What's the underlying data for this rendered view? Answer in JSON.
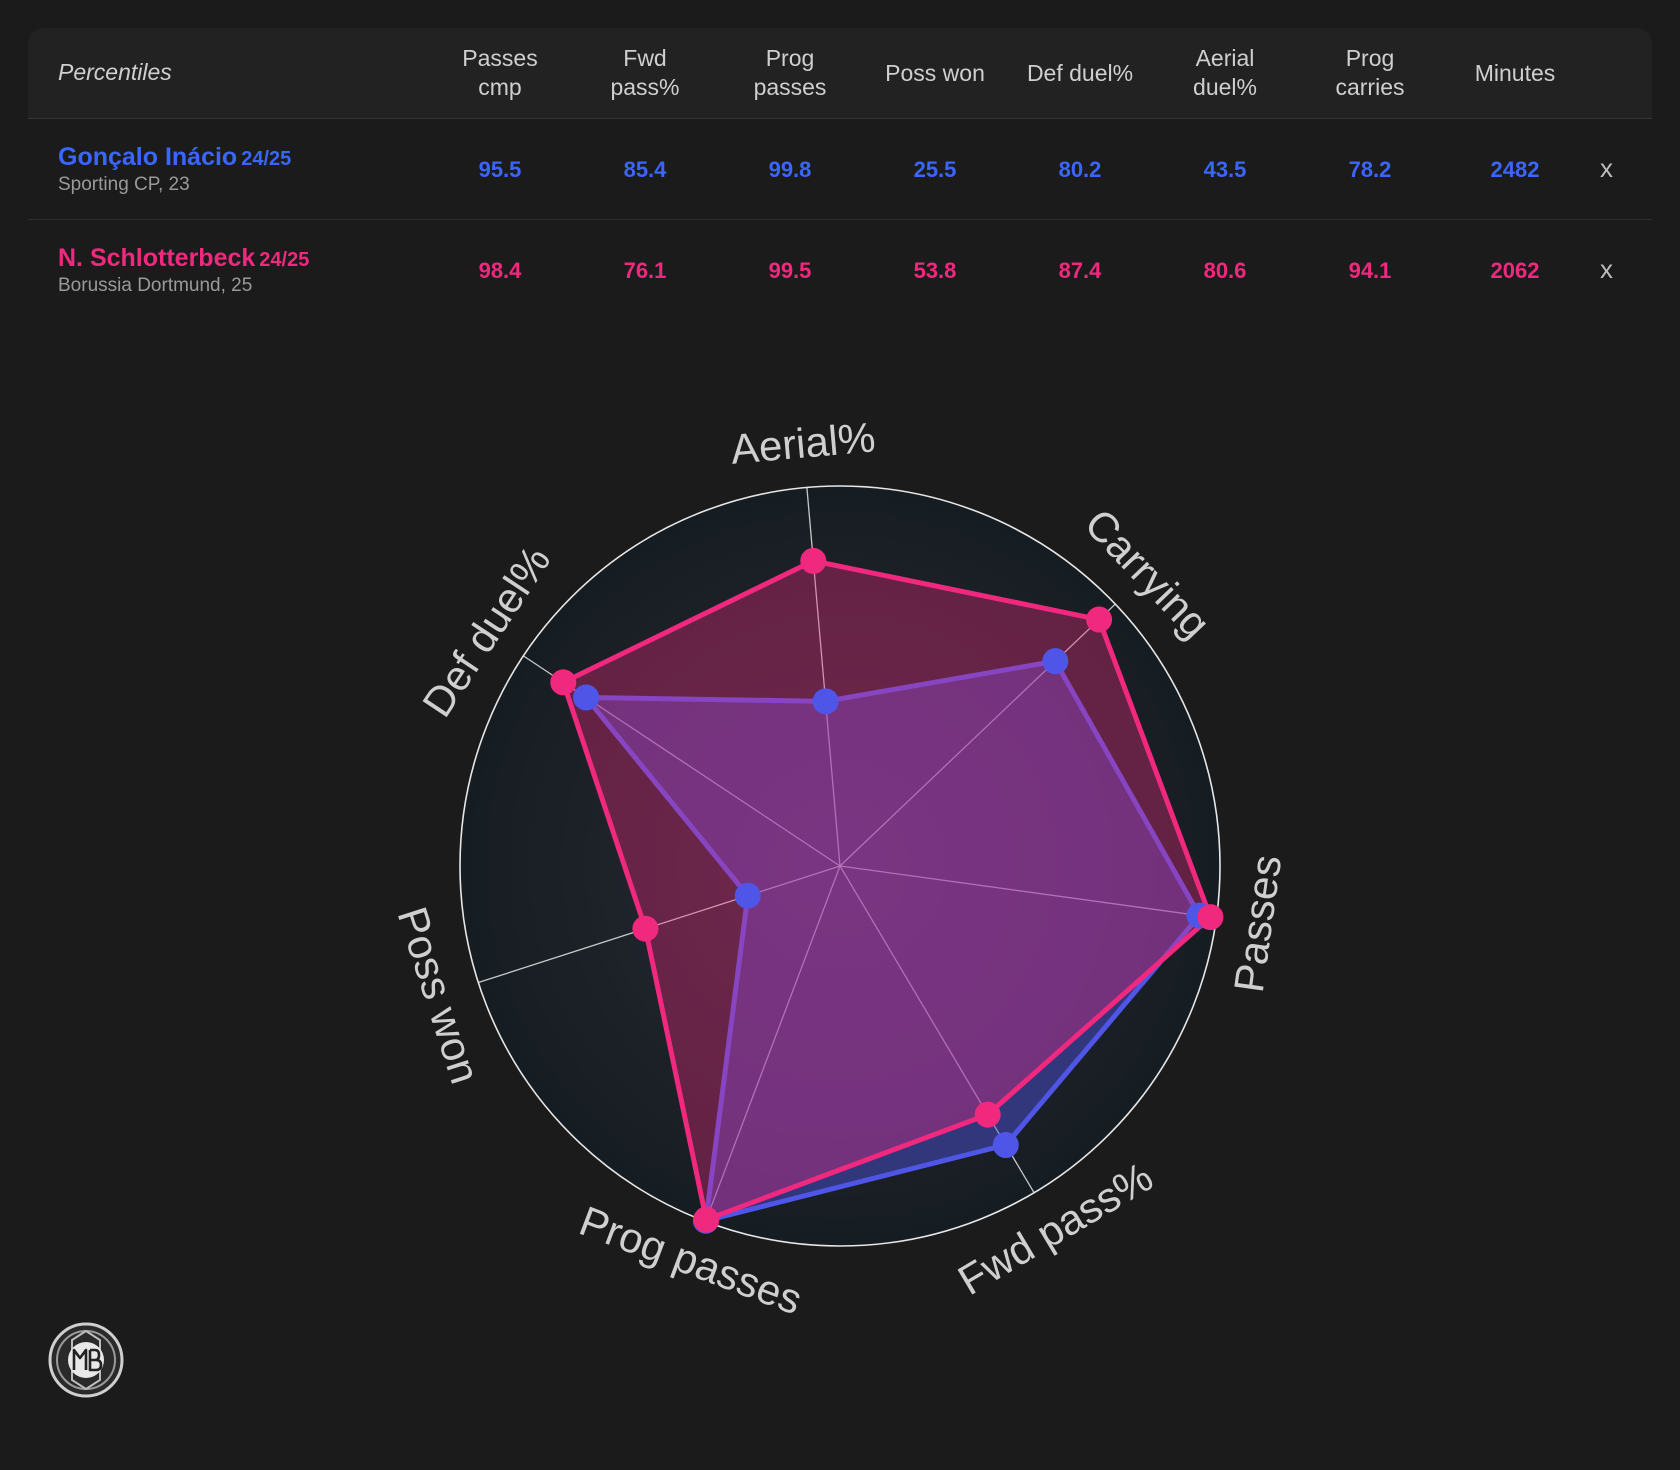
{
  "table": {
    "corner_label": "Percentiles",
    "columns": [
      "Passes\ncmp",
      "Fwd\npass%",
      "Prog\npasses",
      "Poss won",
      "Def duel%",
      "Aerial\nduel%",
      "Prog\ncarries",
      "Minutes"
    ],
    "remove_label": "x"
  },
  "players": [
    {
      "name": "Gonçalo Inácio",
      "season": "24/25",
      "meta": "Sporting CP, 23",
      "color": "#3a66ff",
      "values": [
        "95.5",
        "85.4",
        "99.8",
        "25.5",
        "80.2",
        "43.5",
        "78.2",
        "2482"
      ]
    },
    {
      "name": "N. Schlotterbeck",
      "season": "24/25",
      "meta": "Borussia Dortmund, 25",
      "color": "#f0287e",
      "values": [
        "98.4",
        "76.1",
        "99.5",
        "53.8",
        "87.4",
        "80.6",
        "94.1",
        "2062"
      ]
    }
  ],
  "chart_data": {
    "type": "radar",
    "axes": [
      "Aerial%",
      "Carrying",
      "Passes",
      "Fwd pass%",
      "Prog passes",
      "Poss won",
      "Def duel%"
    ],
    "range": [
      0,
      100
    ],
    "series": [
      {
        "name": "Gonçalo Inácio",
        "color": "#4f55e6",
        "values": [
          43.5,
          78.2,
          95.5,
          85.4,
          99.8,
          25.5,
          80.2
        ]
      },
      {
        "name": "N. Schlotterbeck",
        "color": "#f0287e",
        "values": [
          80.6,
          94.1,
          98.4,
          76.1,
          99.5,
          53.8,
          87.4
        ]
      }
    ]
  }
}
